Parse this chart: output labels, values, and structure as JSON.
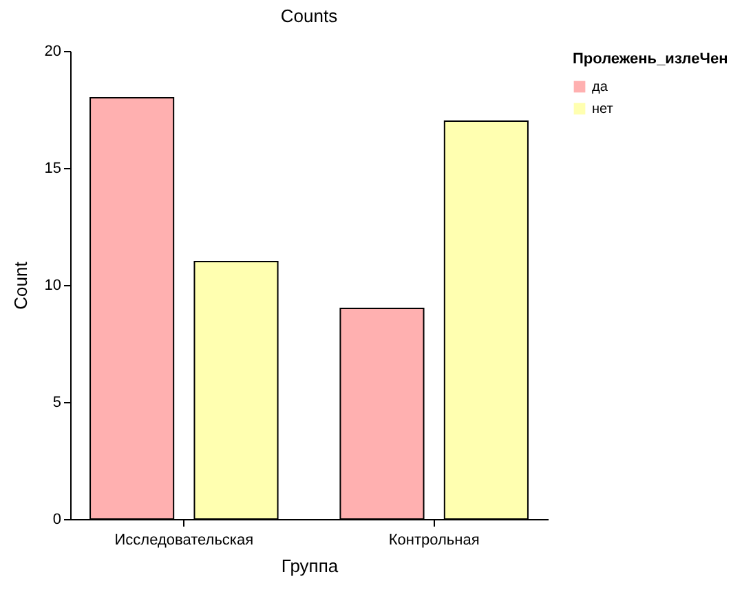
{
  "chart_data": {
    "type": "bar",
    "title": "Counts",
    "xlabel": "Группа",
    "ylabel": "Count",
    "legend_title": "Пролежень_излеЧен",
    "legend": "right",
    "grid": false,
    "categories": [
      "Исследовательская",
      "Контрольная"
    ],
    "series": [
      {
        "name": "да",
        "color": "#ffb0b0",
        "values": [
          18,
          9
        ]
      },
      {
        "name": "нет",
        "color": "#ffffb0",
        "values": [
          11,
          17
        ]
      }
    ],
    "ylim": [
      0,
      20
    ],
    "yticks": [
      0,
      5,
      10,
      15,
      20
    ]
  }
}
